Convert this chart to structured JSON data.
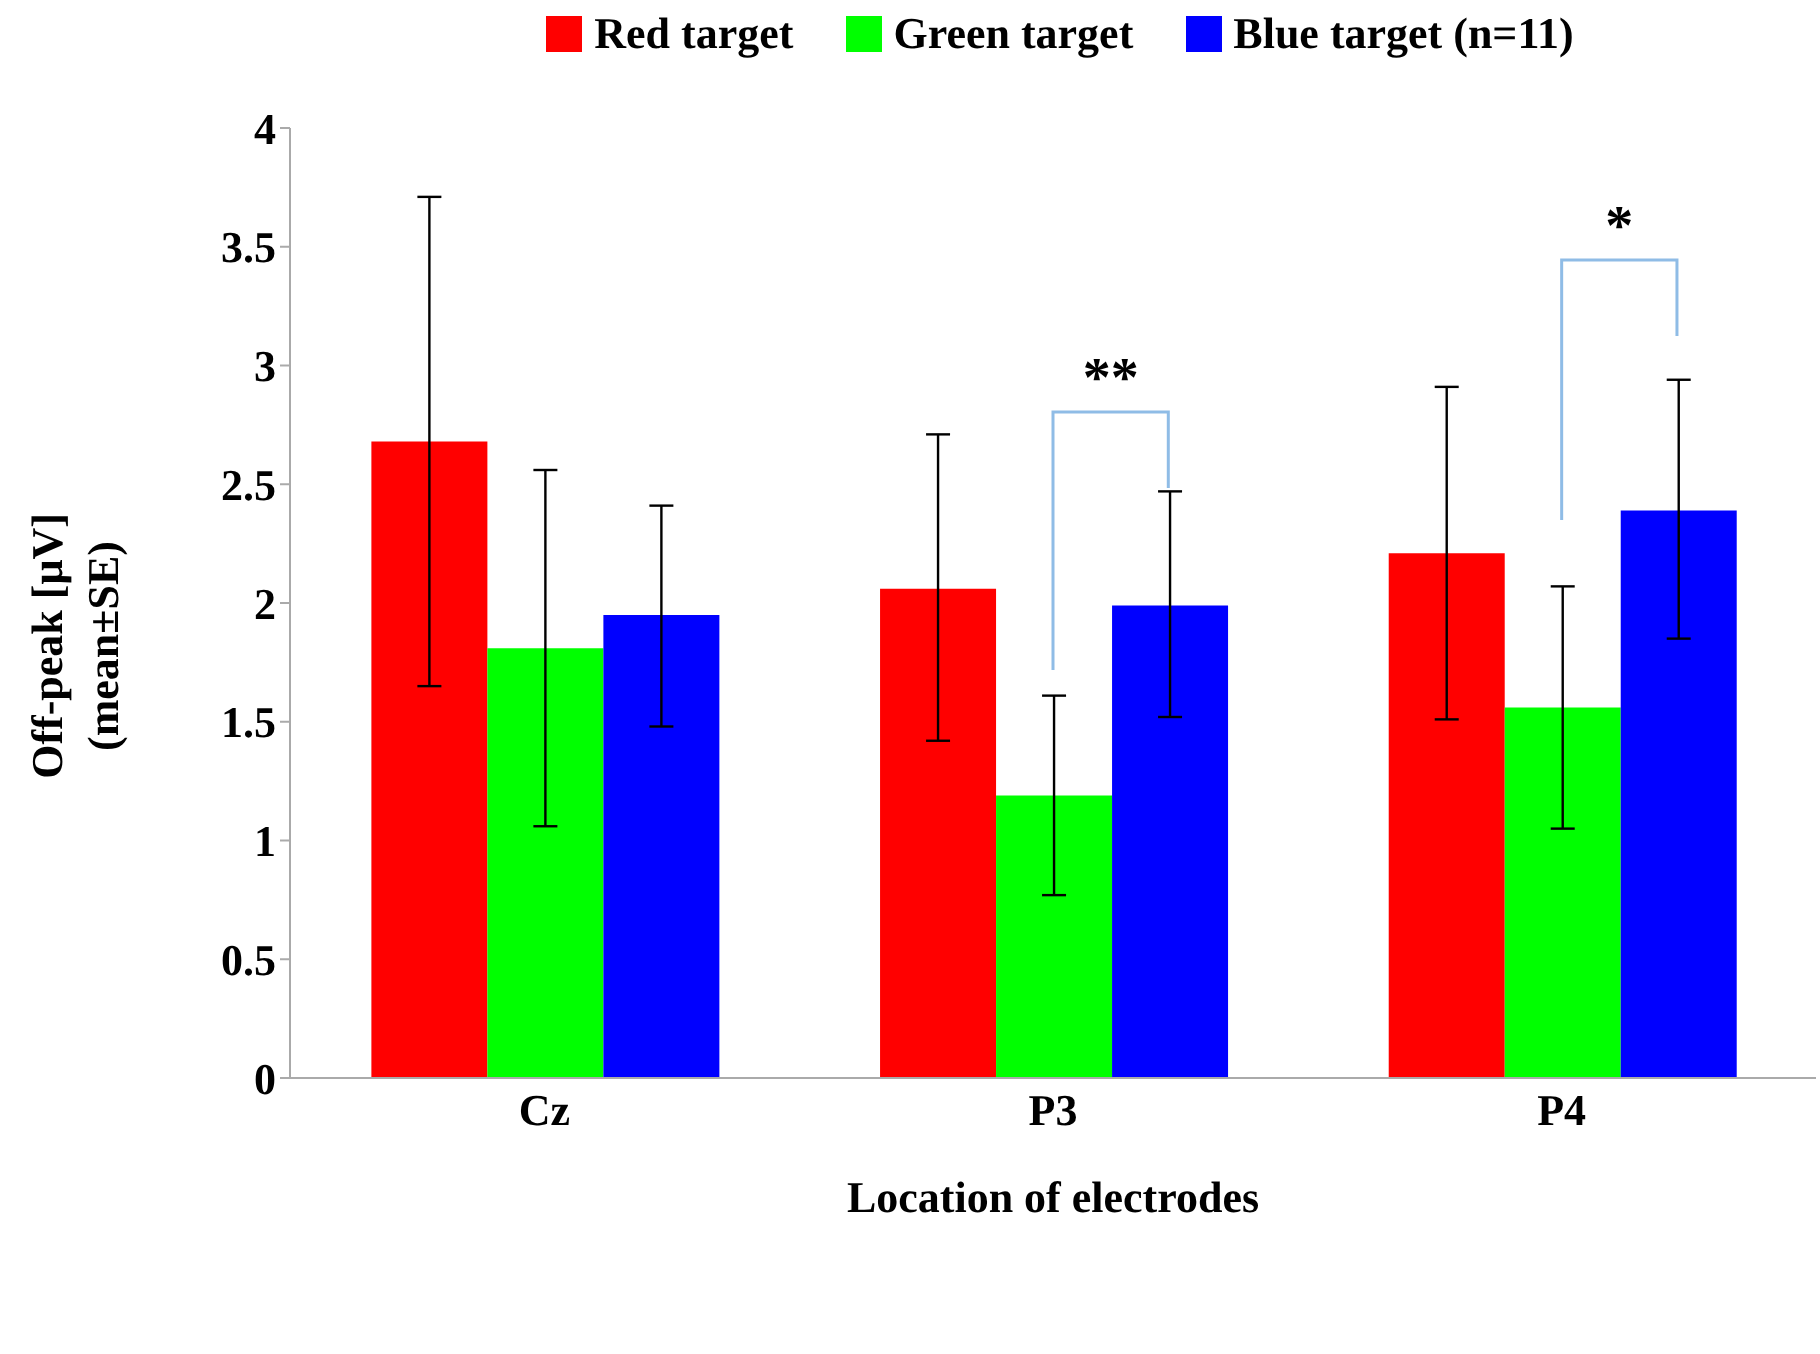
{
  "chart_data": {
    "type": "bar",
    "xlabel": "Location of electrodes",
    "ylabel": "Off-peak [μV] (mean±SE)",
    "categories": [
      "Cz",
      "P3",
      "P4"
    ],
    "series": [
      {
        "name": "Red target",
        "color": "#ff0000",
        "values": [
          2.68,
          2.06,
          2.21
        ],
        "errors": [
          [
            1.65,
            3.71
          ],
          [
            1.42,
            2.71
          ],
          [
            1.51,
            2.91
          ]
        ]
      },
      {
        "name": "Green target",
        "color": "#00ff00",
        "values": [
          1.81,
          1.19,
          1.56
        ],
        "errors": [
          [
            1.06,
            2.56
          ],
          [
            0.77,
            1.61
          ],
          [
            1.05,
            2.07
          ]
        ]
      },
      {
        "name": "Blue target  (n=11)",
        "color": "#0000ff",
        "values": [
          1.95,
          1.99,
          2.39
        ],
        "errors": [
          [
            1.48,
            2.41
          ],
          [
            1.52,
            2.47
          ],
          [
            1.85,
            2.94
          ]
        ]
      }
    ],
    "ylim": [
      0,
      4
    ],
    "yticks": [
      0,
      0.5,
      1,
      1.5,
      2,
      2.5,
      3,
      3.5,
      4
    ],
    "grid": false,
    "legend": "top",
    "annotations": [
      "**",
      "*"
    ]
  }
}
